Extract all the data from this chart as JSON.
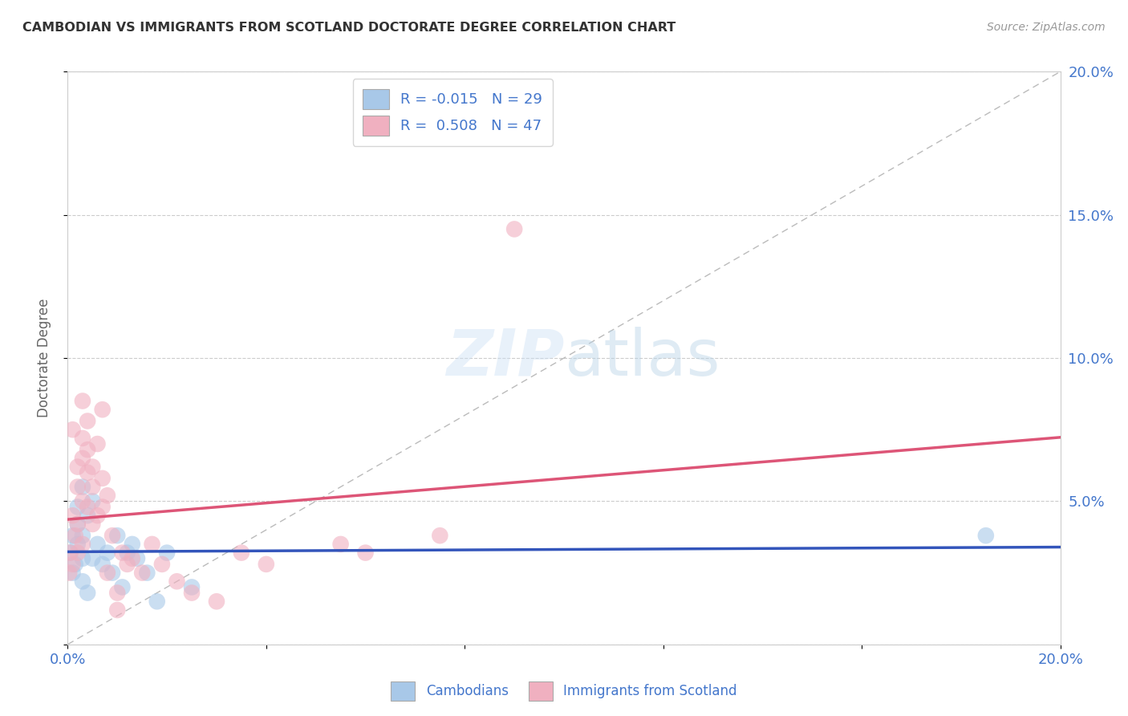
{
  "title": "CAMBODIAN VS IMMIGRANTS FROM SCOTLAND DOCTORATE DEGREE CORRELATION CHART",
  "source": "Source: ZipAtlas.com",
  "ylabel": "Doctorate Degree",
  "xlim": [
    0.0,
    0.2
  ],
  "ylim": [
    0.0,
    0.2
  ],
  "background_color": "#ffffff",
  "grid_color": "#cccccc",
  "diagonal_color": "#bbbbbb",
  "blue_color": "#a8c8e8",
  "pink_color": "#f0b0c0",
  "blue_line_color": "#3355bb",
  "pink_line_color": "#dd5577",
  "axis_label_color": "#4477cc",
  "title_color": "#333333",
  "R_blue": -0.015,
  "N_blue": 29,
  "R_pink": 0.508,
  "N_pink": 47,
  "cambodian_x": [
    0.0005,
    0.001,
    0.001,
    0.0015,
    0.002,
    0.002,
    0.002,
    0.003,
    0.003,
    0.003,
    0.003,
    0.004,
    0.004,
    0.005,
    0.005,
    0.006,
    0.007,
    0.008,
    0.009,
    0.01,
    0.011,
    0.012,
    0.013,
    0.014,
    0.016,
    0.018,
    0.02,
    0.025,
    0.185
  ],
  "cambodian_y": [
    0.032,
    0.025,
    0.038,
    0.028,
    0.035,
    0.042,
    0.048,
    0.03,
    0.038,
    0.022,
    0.055,
    0.045,
    0.018,
    0.05,
    0.03,
    0.035,
    0.028,
    0.032,
    0.025,
    0.038,
    0.02,
    0.032,
    0.035,
    0.03,
    0.025,
    0.015,
    0.032,
    0.02,
    0.038
  ],
  "scotland_x": [
    0.0003,
    0.0005,
    0.001,
    0.001,
    0.001,
    0.0015,
    0.002,
    0.002,
    0.002,
    0.002,
    0.003,
    0.003,
    0.003,
    0.003,
    0.003,
    0.004,
    0.004,
    0.004,
    0.004,
    0.005,
    0.005,
    0.005,
    0.006,
    0.006,
    0.007,
    0.007,
    0.007,
    0.008,
    0.008,
    0.009,
    0.01,
    0.01,
    0.011,
    0.012,
    0.013,
    0.015,
    0.017,
    0.019,
    0.022,
    0.025,
    0.03,
    0.035,
    0.04,
    0.055,
    0.06,
    0.075,
    0.09
  ],
  "scotland_y": [
    0.025,
    0.032,
    0.028,
    0.045,
    0.075,
    0.038,
    0.055,
    0.042,
    0.062,
    0.032,
    0.085,
    0.05,
    0.065,
    0.072,
    0.035,
    0.06,
    0.048,
    0.068,
    0.078,
    0.055,
    0.042,
    0.062,
    0.07,
    0.045,
    0.058,
    0.082,
    0.048,
    0.052,
    0.025,
    0.038,
    0.018,
    0.012,
    0.032,
    0.028,
    0.03,
    0.025,
    0.035,
    0.028,
    0.022,
    0.018,
    0.015,
    0.032,
    0.028,
    0.035,
    0.032,
    0.038,
    0.145
  ]
}
